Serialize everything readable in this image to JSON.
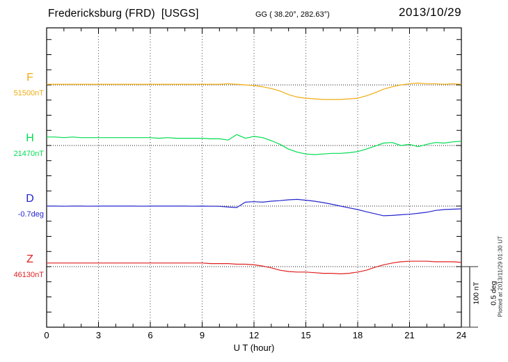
{
  "header": {
    "station": "Fredericksburg (FRD)  [USGS]",
    "coords": "GG ( 38.20°, 282.63°)",
    "date": "2013/10/29"
  },
  "scale_bar": {
    "line1": "100 nT",
    "line2": "0.5 deg"
  },
  "plotted_at": "Plotted at 2013/11/29 01:30 UT",
  "chart_data": {
    "type": "line",
    "title": "Fredericksburg (FRD) [USGS] magnetogram, 2013/10/29",
    "x": {
      "label": "U T (hour)",
      "min": 0,
      "max": 24,
      "step_hours": 0.5,
      "major_ticks": [
        0,
        3,
        6,
        9,
        12,
        15,
        18,
        21,
        24
      ],
      "minor_tick_hours": 1
    },
    "grid": "dotted vertical lines every 3 h; dotted horizontal baseline per channel",
    "legend_position": "left margin, one colored label per channel",
    "scale": {
      "nT_per_division": 100,
      "deg_per_division": 0.5
    },
    "series": [
      {
        "id": "F",
        "label": "F",
        "baseline_label": "51500nT",
        "baseline_value": 51500,
        "unit": "nT",
        "color": "#F0AC12",
        "values": [
          51501,
          51501,
          51501,
          51501,
          51501,
          51501,
          51501,
          51501,
          51501,
          51501,
          51501,
          51501,
          51501,
          51501,
          51501,
          51501,
          51501,
          51501,
          51501,
          51501,
          51501,
          51502,
          51501,
          51500,
          51499,
          51497,
          51494,
          51490,
          51484,
          51480,
          51478,
          51477,
          51476,
          51476,
          51476,
          51477,
          51478,
          51482,
          51487,
          51493,
          51497,
          51500,
          51502,
          51503,
          51502,
          51502,
          51501,
          51502,
          51501
        ]
      },
      {
        "id": "H",
        "label": "H",
        "baseline_label": "21470nT",
        "baseline_value": 21470,
        "unit": "nT",
        "color": "#00DC50",
        "values": [
          21484,
          21484,
          21483,
          21484,
          21483,
          21483,
          21483,
          21483,
          21483,
          21483,
          21483,
          21483,
          21483,
          21482,
          21483,
          21482,
          21482,
          21482,
          21482,
          21481,
          21481,
          21479,
          21488,
          21482,
          21485,
          21483,
          21478,
          21472,
          21464,
          21459,
          21456,
          21455,
          21456,
          21457,
          21457,
          21458,
          21460,
          21464,
          21469,
          21474,
          21475,
          21470,
          21472,
          21468,
          21472,
          21475,
          21474,
          21476,
          21477
        ]
      },
      {
        "id": "D",
        "label": "D",
        "baseline_label": "-0.7deg",
        "baseline_value": -0.7,
        "unit": "deg",
        "color": "#2424CE",
        "values": [
          -0.7,
          -0.7,
          -0.701,
          -0.7,
          -0.7,
          -0.701,
          -0.7,
          -0.7,
          -0.7,
          -0.7,
          -0.7,
          -0.701,
          -0.7,
          -0.7,
          -0.7,
          -0.7,
          -0.7,
          -0.701,
          -0.7,
          -0.701,
          -0.702,
          -0.708,
          -0.712,
          -0.668,
          -0.664,
          -0.668,
          -0.66,
          -0.655,
          -0.648,
          -0.645,
          -0.652,
          -0.66,
          -0.671,
          -0.685,
          -0.7,
          -0.715,
          -0.729,
          -0.747,
          -0.764,
          -0.78,
          -0.777,
          -0.772,
          -0.767,
          -0.76,
          -0.751,
          -0.736,
          -0.729,
          -0.726,
          -0.723
        ]
      },
      {
        "id": "Z",
        "label": "Z",
        "baseline_label": "46130nT",
        "baseline_value": 46130,
        "unit": "nT",
        "color": "#E01F1F",
        "values": [
          46136,
          46136,
          46136,
          46136,
          46136,
          46136,
          46136,
          46136,
          46136,
          46136,
          46136,
          46136,
          46136,
          46136,
          46136,
          46136,
          46136,
          46136,
          46136,
          46135,
          46135,
          46135,
          46134,
          46134,
          46133,
          46131,
          46128,
          46124,
          46122,
          46121,
          46121,
          46120,
          46119,
          46119,
          46118,
          46119,
          46121,
          46124,
          46129,
          46133,
          46136,
          46138,
          46139,
          46139,
          46139,
          46138,
          46138,
          46138,
          46137
        ]
      }
    ]
  }
}
